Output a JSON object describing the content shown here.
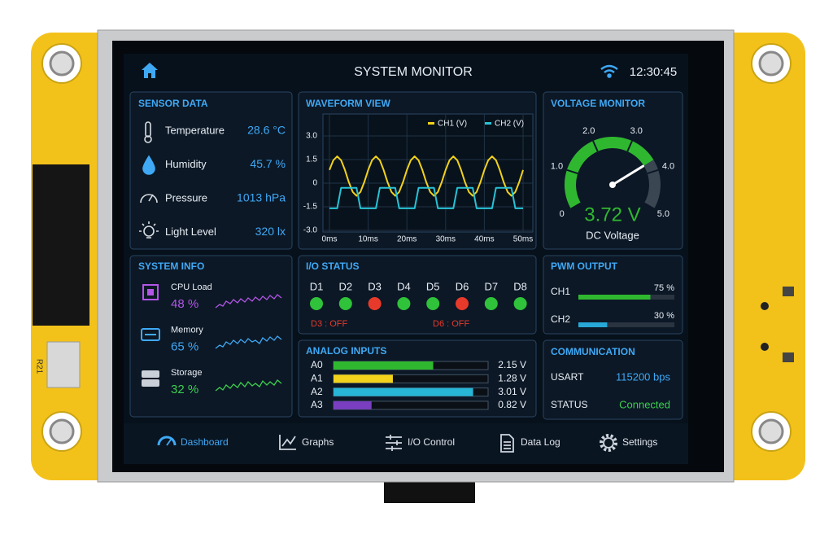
{
  "header": {
    "title": "SYSTEM MONITOR",
    "time": "12:30:45"
  },
  "sensor_data": {
    "title": "SENSOR DATA",
    "rows": [
      {
        "label": "Temperature",
        "value": "28.6 °C"
      },
      {
        "label": "Humidity",
        "value": "45.7 %"
      },
      {
        "label": "Pressure",
        "value": "1013 hPa"
      },
      {
        "label": "Light Level",
        "value": "320 lx"
      }
    ]
  },
  "chart_data": [
    {
      "type": "line",
      "title": "WAVEFORM VIEW",
      "x": [
        0,
        1,
        2,
        3,
        4,
        5,
        6,
        7,
        8,
        9,
        10,
        11,
        12,
        13,
        14,
        15,
        16,
        17,
        18,
        19,
        20,
        21,
        22,
        23,
        24,
        25,
        26,
        27,
        28,
        29,
        30,
        31,
        32,
        33,
        34,
        35,
        36,
        37,
        38,
        39,
        40,
        41,
        42,
        43,
        44,
        45,
        46,
        47,
        48,
        49,
        50
      ],
      "series": [
        {
          "name": "CH1 (V)",
          "color": "#f2d21b",
          "values": [
            0.84,
            1.46,
            1.7,
            1.46,
            0.84,
            0.06,
            -0.56,
            -0.8,
            -0.56,
            0.06,
            0.84,
            1.46,
            1.7,
            1.46,
            0.84,
            0.06,
            -0.56,
            -0.8,
            -0.56,
            0.06,
            0.84,
            1.46,
            1.7,
            1.46,
            0.84,
            0.06,
            -0.56,
            -0.8,
            -0.56,
            0.06,
            0.84,
            1.46,
            1.7,
            1.46,
            0.84,
            0.06,
            -0.56,
            -0.8,
            -0.56,
            0.06,
            0.84,
            1.46,
            1.7,
            1.46,
            0.84,
            0.06,
            -0.56,
            -0.8,
            -0.56,
            0.06,
            0.84
          ]
        },
        {
          "name": "CH2 (V)",
          "color": "#27c3d6",
          "values": [
            -1.6,
            -1.6,
            -1.6,
            -0.3,
            -0.3,
            -0.3,
            -0.3,
            -0.3,
            -1.6,
            -1.6,
            -1.6,
            -1.6,
            -1.6,
            -0.3,
            -0.3,
            -0.3,
            -0.3,
            -0.3,
            -1.6,
            -1.6,
            -1.6,
            -1.6,
            -1.6,
            -0.3,
            -0.3,
            -0.3,
            -0.3,
            -0.3,
            -1.6,
            -1.6,
            -1.6,
            -1.6,
            -1.6,
            -0.3,
            -0.3,
            -0.3,
            -0.3,
            -0.3,
            -1.6,
            -1.6,
            -1.6,
            -1.6,
            -1.6,
            -0.3,
            -0.3,
            -0.3,
            -0.3,
            -0.3,
            -1.6,
            -1.6,
            -1.6
          ]
        }
      ],
      "xlim": [
        0,
        50
      ],
      "ylim": [
        -3,
        3
      ],
      "xticks": [
        {
          "value": 0,
          "label": "0ms"
        },
        {
          "value": 10,
          "label": "10ms"
        },
        {
          "value": 20,
          "label": "20ms"
        },
        {
          "value": 30,
          "label": "30ms"
        },
        {
          "value": 40,
          "label": "40ms"
        },
        {
          "value": 50,
          "label": "50ms"
        }
      ],
      "yticks": [
        {
          "value": 3,
          "label": "3.0"
        },
        1.5,
        0,
        -1.5,
        {
          "value": -3,
          "label": "-3.0"
        }
      ],
      "grid": true,
      "legend": "top-right"
    },
    {
      "type": "gauge",
      "title": "VOLTAGE MONITOR",
      "value": 3.72,
      "value_label": "3.72 V",
      "subtitle": "DC Voltage",
      "color": "#2fb82f",
      "ylim": [
        0,
        5
      ],
      "yticks": [
        0,
        {
          "value": 1,
          "label": "1.0"
        },
        {
          "value": 2,
          "label": "2.0"
        },
        {
          "value": 3,
          "label": "3.0"
        },
        {
          "value": 4,
          "label": "4.0"
        },
        {
          "value": 5,
          "label": "5.0"
        }
      ]
    }
  ],
  "system_info": {
    "title": "SYSTEM INFO",
    "rows": [
      {
        "label": "CPU Load",
        "value": "48 %",
        "color": "#b455e8"
      },
      {
        "label": "Memory",
        "value": "65 %",
        "color": "#3fa9f5"
      },
      {
        "label": "Storage",
        "value": "32 %",
        "color": "#3ccf4e"
      }
    ]
  },
  "io_status": {
    "title": "I/O STATUS",
    "pins": [
      "D1",
      "D2",
      "D3",
      "D4",
      "D5",
      "D6",
      "D7",
      "D8"
    ],
    "colors": [
      "#2fc23a",
      "#2fc23a",
      "#e83a2a",
      "#2fc23a",
      "#2fc23a",
      "#e83a2a",
      "#2fc23a",
      "#2fc23a"
    ],
    "alerts": [
      "D3 : OFF",
      "D6 : OFF"
    ]
  },
  "pwm_output": {
    "title": "PWM OUTPUT",
    "rows": [
      {
        "label": "CH1",
        "value": 75,
        "value_label": "75 %",
        "color": "#2fb82f"
      },
      {
        "label": "CH2",
        "value": 30,
        "value_label": "30 %",
        "color": "#27a8d6"
      }
    ]
  },
  "analog_inputs": {
    "title": "ANALOG INPUTS",
    "rows": [
      {
        "label": "A0",
        "value": 2.15,
        "value_label": "2.15 V",
        "color": "#2fb82f"
      },
      {
        "label": "A1",
        "value": 1.28,
        "value_label": "1.28 V",
        "color": "#f2d21b"
      },
      {
        "label": "A2",
        "value": 3.01,
        "value_label": "3.01 V",
        "color": "#27b6d6"
      },
      {
        "label": "A3",
        "value": 0.82,
        "value_label": "0.82 V",
        "color": "#7a3fc0"
      }
    ]
  },
  "communication": {
    "title": "COMMUNICATION",
    "rows": [
      {
        "label": "USART",
        "value": "115200 bps",
        "color": "#3fa9f5"
      },
      {
        "label": "STATUS",
        "value": "Connected",
        "color": "#3ccf4e"
      }
    ]
  },
  "nav": {
    "items": [
      "Dashboard",
      "Graphs",
      "I/O Control",
      "Data Log",
      "Settings"
    ],
    "active": 0
  },
  "board": {
    "label": "R21"
  }
}
